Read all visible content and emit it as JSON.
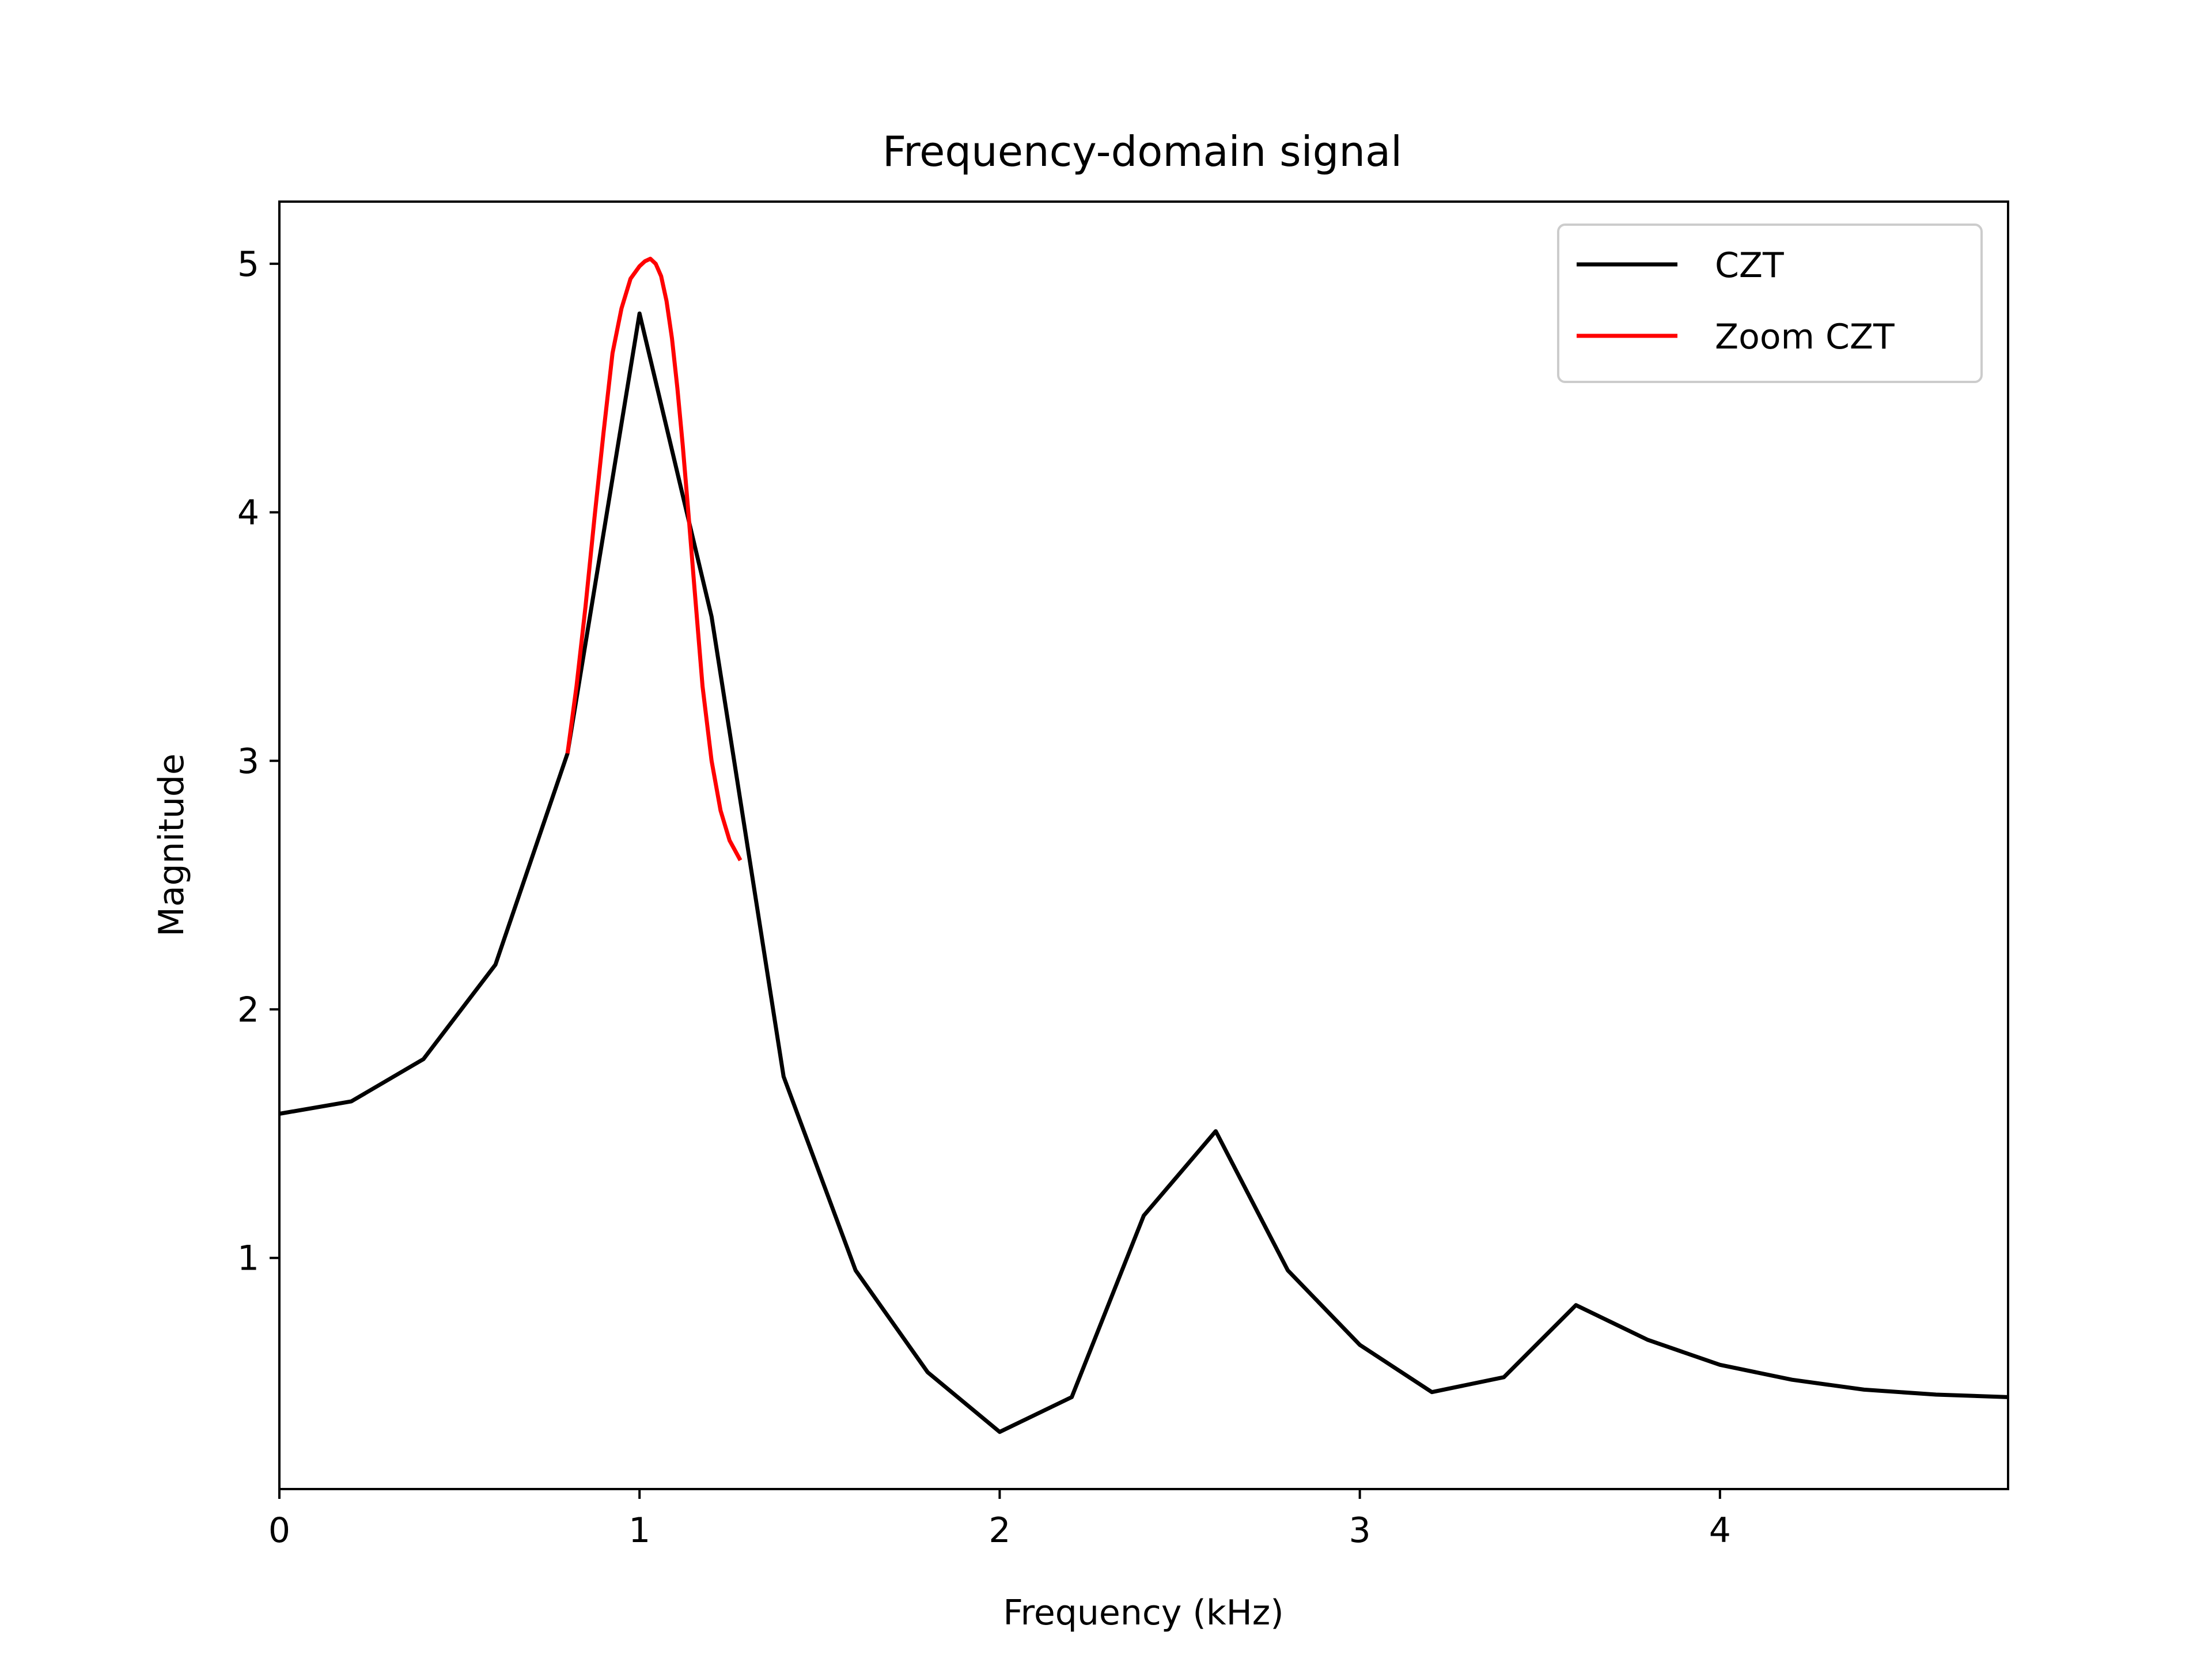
{
  "chart_data": {
    "type": "line",
    "title": "Frequency-domain signal",
    "xlabel": "Frequency (kHz)",
    "ylabel": "Magnitude",
    "xlim": [
      0,
      4.8
    ],
    "ylim": [
      0.07,
      5.25
    ],
    "xticks": [
      0,
      1,
      2,
      3,
      4
    ],
    "xtick_labels": [
      "0",
      "1",
      "2",
      "3",
      "4"
    ],
    "yticks": [
      1,
      2,
      3,
      4,
      5
    ],
    "ytick_labels": [
      "1",
      "2",
      "3",
      "4",
      "5"
    ],
    "grid": false,
    "legend_position": "top-right",
    "series": [
      {
        "name": "CZT",
        "color": "#000000",
        "x": [
          0,
          0.2,
          0.4,
          0.6,
          0.8,
          1.0,
          1.2,
          1.4,
          1.6,
          1.8,
          2.0,
          2.2,
          2.4,
          2.6,
          2.8,
          3.0,
          3.2,
          3.4,
          3.6,
          3.8,
          4.0,
          4.2,
          4.4,
          4.6,
          4.8
        ],
        "y": [
          1.58,
          1.63,
          1.8,
          2.18,
          3.03,
          4.8,
          3.58,
          1.73,
          0.95,
          0.54,
          0.3,
          0.44,
          1.17,
          1.51,
          0.95,
          0.65,
          0.46,
          0.52,
          0.81,
          0.67,
          0.57,
          0.51,
          0.47,
          0.45,
          0.44
        ]
      },
      {
        "name": "Zoom CZT",
        "color": "#ff0000",
        "x": [
          0.8,
          0.825,
          0.85,
          0.875,
          0.9,
          0.925,
          0.95,
          0.975,
          1.0,
          1.015,
          1.03,
          1.045,
          1.06,
          1.075,
          1.09,
          1.105,
          1.12,
          1.135,
          1.15,
          1.175,
          1.2,
          1.225,
          1.25,
          1.28
        ],
        "y": [
          3.03,
          3.3,
          3.62,
          3.98,
          4.32,
          4.64,
          4.82,
          4.94,
          4.99,
          5.01,
          5.02,
          5.0,
          4.95,
          4.85,
          4.7,
          4.5,
          4.27,
          4.01,
          3.74,
          3.3,
          3.0,
          2.8,
          2.68,
          2.6
        ]
      }
    ]
  }
}
